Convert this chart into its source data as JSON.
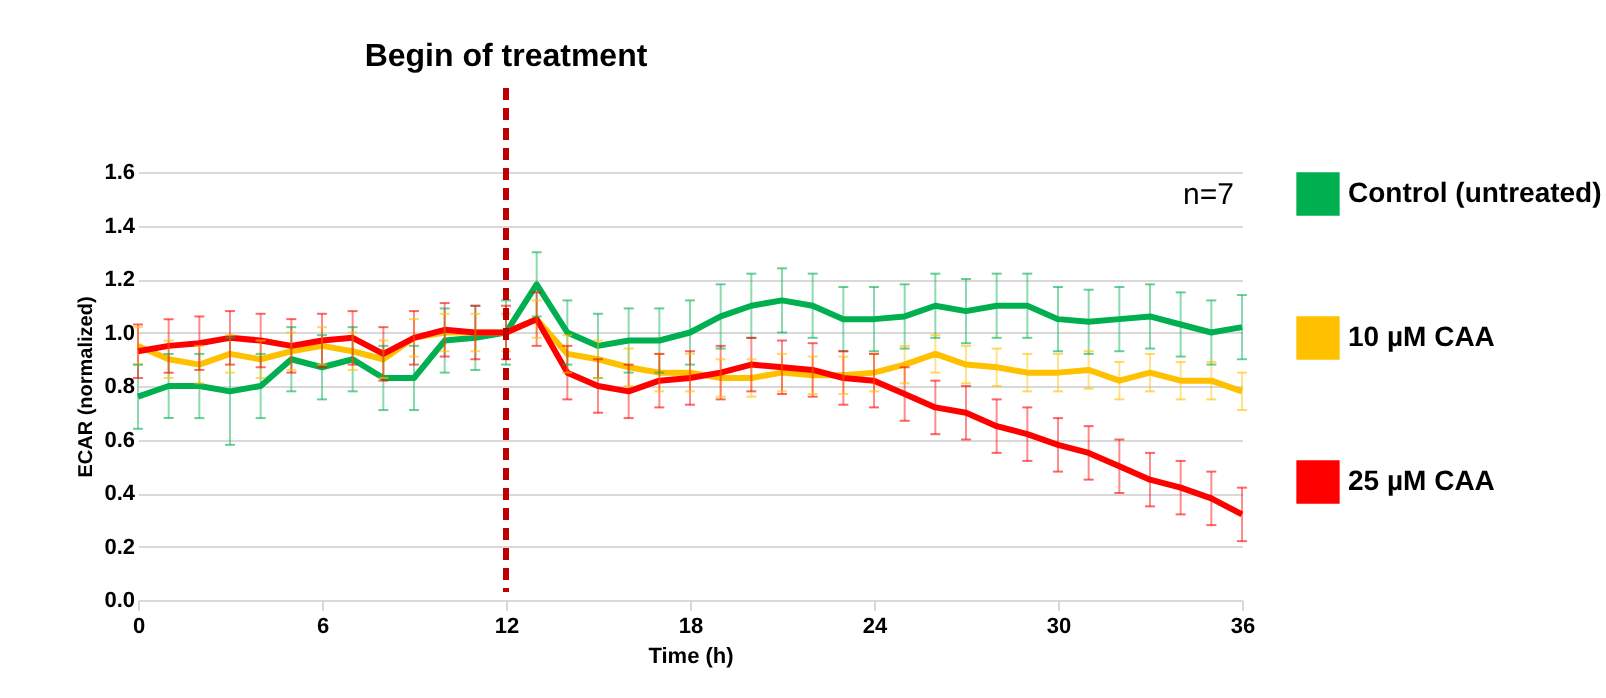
{
  "chart_data": {
    "type": "line",
    "xlabel": "Time (h)",
    "ylabel": "ECAR (normalized)",
    "x": [
      0,
      1,
      2,
      3,
      4,
      5,
      6,
      7,
      8,
      9,
      10,
      11,
      12,
      13,
      14,
      15,
      16,
      17,
      18,
      19,
      20,
      21,
      22,
      23,
      24,
      25,
      26,
      27,
      28,
      29,
      30,
      31,
      32,
      33,
      34,
      35,
      36
    ],
    "series": [
      {
        "name": "Control (untreated)",
        "color": "#00b050",
        "values": [
          0.76,
          0.8,
          0.8,
          0.78,
          0.8,
          0.9,
          0.87,
          0.9,
          0.83,
          0.83,
          0.97,
          0.98,
          1.0,
          1.18,
          1.0,
          0.95,
          0.97,
          0.97,
          1.0,
          1.06,
          1.1,
          1.12,
          1.1,
          1.05,
          1.05,
          1.06,
          1.1,
          1.08,
          1.1,
          1.1,
          1.05,
          1.04,
          1.05,
          1.06,
          1.03,
          1.0,
          1.02
        ],
        "errors": [
          0.12,
          0.12,
          0.12,
          0.2,
          0.12,
          0.12,
          0.12,
          0.12,
          0.12,
          0.12,
          0.12,
          0.12,
          0.12,
          0.12,
          0.12,
          0.12,
          0.12,
          0.12,
          0.12,
          0.12,
          0.12,
          0.12,
          0.12,
          0.12,
          0.12,
          0.12,
          0.12,
          0.12,
          0.12,
          0.12,
          0.12,
          0.12,
          0.12,
          0.12,
          0.12,
          0.12,
          0.12
        ]
      },
      {
        "name": "10 µM CAA",
        "color": "#ffc000",
        "values": [
          0.95,
          0.9,
          0.88,
          0.92,
          0.9,
          0.93,
          0.95,
          0.93,
          0.9,
          0.98,
          1.0,
          1.0,
          1.0,
          1.05,
          0.92,
          0.9,
          0.87,
          0.85,
          0.85,
          0.83,
          0.83,
          0.85,
          0.84,
          0.84,
          0.85,
          0.88,
          0.92,
          0.88,
          0.87,
          0.85,
          0.85,
          0.86,
          0.82,
          0.85,
          0.82,
          0.82,
          0.78
        ],
        "errors": [
          0.07,
          0.07,
          0.07,
          0.07,
          0.07,
          0.07,
          0.07,
          0.07,
          0.07,
          0.07,
          0.07,
          0.07,
          0.07,
          0.07,
          0.07,
          0.07,
          0.07,
          0.07,
          0.07,
          0.07,
          0.07,
          0.07,
          0.07,
          0.07,
          0.07,
          0.07,
          0.07,
          0.07,
          0.07,
          0.07,
          0.07,
          0.07,
          0.07,
          0.07,
          0.07,
          0.07,
          0.07
        ]
      },
      {
        "name": "25 µM CAA",
        "color": "#ff0000",
        "values": [
          0.93,
          0.95,
          0.96,
          0.98,
          0.97,
          0.95,
          0.97,
          0.98,
          0.92,
          0.98,
          1.01,
          1.0,
          1.0,
          1.05,
          0.85,
          0.8,
          0.78,
          0.82,
          0.83,
          0.85,
          0.88,
          0.87,
          0.86,
          0.83,
          0.82,
          0.77,
          0.72,
          0.7,
          0.65,
          0.62,
          0.58,
          0.55,
          0.5,
          0.45,
          0.42,
          0.38,
          0.32
        ],
        "errors": [
          0.1,
          0.1,
          0.1,
          0.1,
          0.1,
          0.1,
          0.1,
          0.1,
          0.1,
          0.1,
          0.1,
          0.1,
          0.1,
          0.1,
          0.1,
          0.1,
          0.1,
          0.1,
          0.1,
          0.1,
          0.1,
          0.1,
          0.1,
          0.1,
          0.1,
          0.1,
          0.1,
          0.1,
          0.1,
          0.1,
          0.1,
          0.1,
          0.1,
          0.1,
          0.1,
          0.1,
          0.1
        ]
      }
    ],
    "xlim": [
      0,
      36
    ],
    "xticks": [
      0,
      6,
      12,
      18,
      24,
      30,
      36
    ],
    "ylim": [
      0,
      1.6
    ],
    "yticks": [
      {
        "value": 0,
        "label": "0.0"
      },
      0.2,
      0.4,
      0.6,
      0.8,
      {
        "value": 1,
        "label": "1.0"
      },
      1.2,
      1.4,
      1.6
    ],
    "grid": "y",
    "legend": "right",
    "line_style": "solid",
    "ref_lines": [
      {
        "axis": "x",
        "value": 12,
        "label": "Begin of treatment",
        "color": "#c00000",
        "line_style": "dashed"
      }
    ],
    "annotations": [
      "n=7"
    ]
  }
}
